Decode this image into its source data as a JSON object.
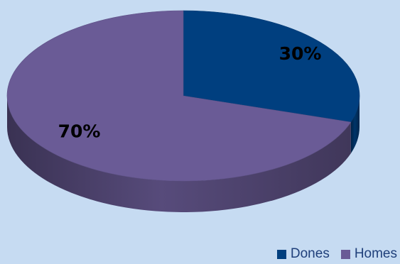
{
  "chart_data": {
    "type": "pie",
    "style": "3d",
    "categories": [
      "Dones",
      "Homes"
    ],
    "values": [
      30,
      70
    ],
    "labels": [
      "30%",
      "70%"
    ],
    "colors": [
      "#003f7f",
      "#6a5b96"
    ],
    "legend": "bottom-right"
  }
}
